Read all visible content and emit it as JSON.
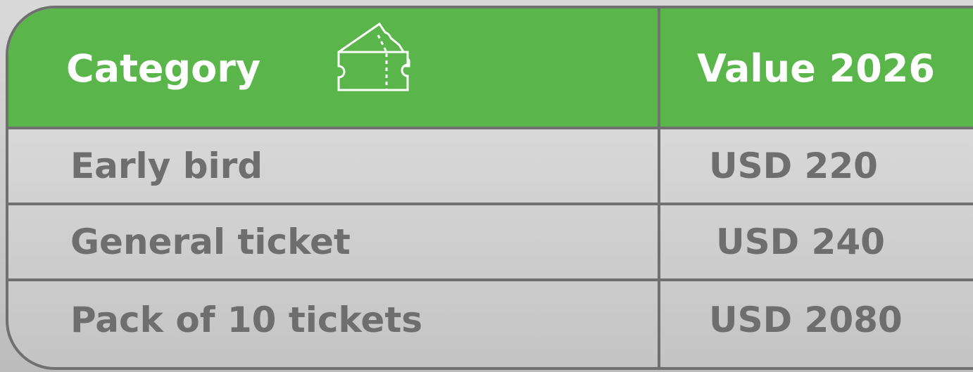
{
  "table": {
    "header": [
      "Category",
      "Value 2026"
    ],
    "rows": [
      [
        "Early bird",
        "USD 220"
      ],
      [
        "General ticket",
        "USD 240"
      ],
      [
        "Pack of 10 tickets",
        "USD 2080"
      ]
    ]
  }
}
